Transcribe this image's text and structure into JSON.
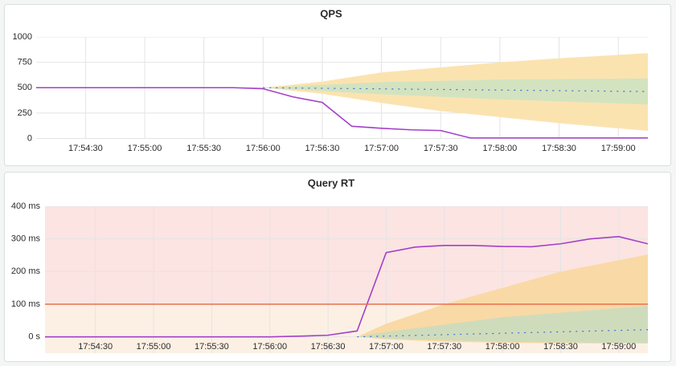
{
  "chart_data": [
    {
      "type": "line",
      "title": "QPS",
      "xlim": [
        "17:54:05",
        "17:59:15"
      ],
      "xticks": [
        "17:54:30",
        "17:55:00",
        "17:55:30",
        "17:56:00",
        "17:56:30",
        "17:57:00",
        "17:57:30",
        "17:58:00",
        "17:58:30",
        "17:59:00"
      ],
      "ylim": [
        0,
        1000
      ],
      "yticks": [
        0,
        250,
        500,
        750,
        1000
      ],
      "grid": true,
      "series": [
        {
          "color": "#a43fc9",
          "x": [
            "17:54:05",
            "17:55:45",
            "17:56:00",
            "17:56:15",
            "17:56:30",
            "17:56:45",
            "17:57:00",
            "17:57:15",
            "17:57:30",
            "17:57:45",
            "17:58:00",
            "17:58:30",
            "17:59:00",
            "17:59:15"
          ],
          "values": [
            500,
            500,
            490,
            410,
            355,
            120,
            100,
            85,
            78,
            5,
            5,
            5,
            5,
            5
          ]
        },
        {
          "color": "#3b6fd4",
          "dashed": true,
          "x": [
            "17:56:00",
            "17:59:15"
          ],
          "values": [
            500,
            462
          ]
        }
      ],
      "bands": [
        {
          "color": "#fbe3b0",
          "x": [
            "17:56:00",
            "17:56:30",
            "17:57:00",
            "17:57:30",
            "17:58:00",
            "17:58:30",
            "17:59:15"
          ],
          "upper": [
            500,
            560,
            650,
            700,
            750,
            790,
            840
          ],
          "lower": [
            500,
            440,
            350,
            270,
            210,
            150,
            75
          ]
        },
        {
          "color": "#d3e3c0",
          "x": [
            "17:56:00",
            "17:57:00",
            "17:58:00",
            "17:59:15"
          ],
          "upper": [
            500,
            555,
            580,
            590
          ],
          "lower": [
            500,
            435,
            385,
            335
          ]
        }
      ]
    },
    {
      "type": "line",
      "title": "Query RT",
      "xlim": [
        "17:54:04",
        "17:59:15"
      ],
      "xticks": [
        "17:54:30",
        "17:55:00",
        "17:55:30",
        "17:56:00",
        "17:56:30",
        "17:57:00",
        "17:57:30",
        "17:58:00",
        "17:58:30",
        "17:59:00"
      ],
      "ylim": [
        -50,
        400
      ],
      "yticks": [
        {
          "value": 0,
          "label": "0 s"
        },
        {
          "value": 100,
          "label": "100 ms"
        },
        {
          "value": 200,
          "label": "200 ms"
        },
        {
          "value": 300,
          "label": "300 ms"
        },
        {
          "value": 400,
          "label": "400 ms"
        }
      ],
      "grid": true,
      "threshold": {
        "value": 100,
        "color": "#e8714f",
        "above_color": "#fbe4e2",
        "below_color": "#fcf0e4"
      },
      "series": [
        {
          "color": "#a43fc9",
          "x": [
            "17:54:04",
            "17:56:00",
            "17:56:15",
            "17:56:30",
            "17:56:45",
            "17:57:00",
            "17:57:15",
            "17:57:30",
            "17:57:45",
            "17:58:00",
            "17:58:15",
            "17:58:30",
            "17:58:45",
            "17:59:00",
            "17:59:15"
          ],
          "values": [
            0,
            0,
            2,
            5,
            18,
            258,
            275,
            280,
            280,
            277,
            276,
            285,
            300,
            307,
            285
          ]
        },
        {
          "color": "#3b6fd4",
          "dashed": true,
          "x": [
            "17:56:45",
            "17:59:15"
          ],
          "values": [
            0,
            22
          ]
        }
      ],
      "bands": [
        {
          "color": "#f9d9a6",
          "x": [
            "17:56:45",
            "17:57:00",
            "17:57:30",
            "17:58:00",
            "17:58:30",
            "17:59:15"
          ],
          "upper": [
            0,
            40,
            100,
            150,
            200,
            252
          ],
          "lower": [
            0,
            -8,
            -15,
            -18,
            -20,
            -20
          ]
        },
        {
          "color": "#cfdcbc",
          "x": [
            "17:56:45",
            "17:57:00",
            "17:58:00",
            "17:59:15"
          ],
          "upper": [
            0,
            15,
            60,
            95
          ],
          "lower": [
            0,
            -5,
            -15,
            -20
          ]
        }
      ]
    }
  ]
}
